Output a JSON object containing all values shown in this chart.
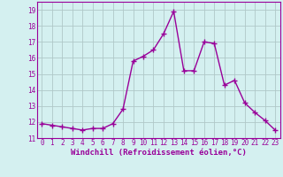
{
  "x": [
    0,
    1,
    2,
    3,
    4,
    5,
    6,
    7,
    8,
    9,
    10,
    11,
    12,
    13,
    14,
    15,
    16,
    17,
    18,
    19,
    20,
    21,
    22,
    23
  ],
  "y": [
    11.9,
    11.8,
    11.7,
    11.6,
    11.5,
    11.6,
    11.6,
    11.9,
    12.8,
    15.8,
    16.1,
    16.5,
    17.5,
    18.9,
    15.2,
    15.2,
    17.0,
    16.9,
    14.3,
    14.6,
    13.2,
    12.6,
    12.1,
    11.5
  ],
  "line_color": "#990099",
  "marker": "+",
  "marker_size": 4,
  "bg_color": "#d4f0f0",
  "grid_color": "#b0c8c8",
  "xlabel": "Windchill (Refroidissement éolien,°C)",
  "ylabel": "",
  "ylim": [
    11,
    19.5
  ],
  "xlim": [
    -0.5,
    23.5
  ],
  "yticks": [
    11,
    12,
    13,
    14,
    15,
    16,
    17,
    18,
    19
  ],
  "xticks": [
    0,
    1,
    2,
    3,
    4,
    5,
    6,
    7,
    8,
    9,
    10,
    11,
    12,
    13,
    14,
    15,
    16,
    17,
    18,
    19,
    20,
    21,
    22,
    23
  ],
  "tick_label_size": 5.5,
  "xlabel_size": 6.5,
  "line_width": 1.0
}
